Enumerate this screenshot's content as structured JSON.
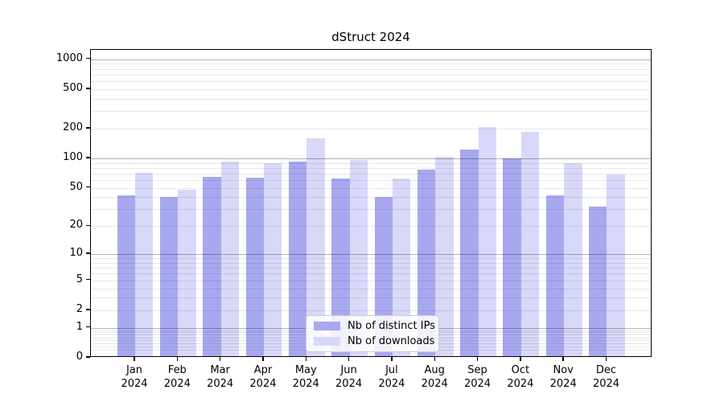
{
  "chart_data": {
    "type": "bar",
    "title": "dStruct 2024",
    "months": [
      "Jan",
      "Feb",
      "Mar",
      "Apr",
      "May",
      "Jun",
      "Jul",
      "Aug",
      "Sep",
      "Oct",
      "Nov",
      "Dec"
    ],
    "year": "2024",
    "categories": [
      "Jan 2024",
      "Feb 2024",
      "Mar 2024",
      "Apr 2024",
      "May 2024",
      "Jun 2024",
      "Jul 2024",
      "Aug 2024",
      "Sep 2024",
      "Oct 2024",
      "Nov 2024",
      "Dec 2024"
    ],
    "series": [
      {
        "name": "Nb of distinct IPs",
        "color": "#a8a8f0",
        "values": [
          42,
          40,
          65,
          63,
          92,
          62,
          40,
          77,
          124,
          100,
          42,
          32
        ]
      },
      {
        "name": "Nb of downloads",
        "color": "#d8d8f8",
        "values": [
          71,
          48,
          92,
          90,
          160,
          97,
          62,
          104,
          207,
          186,
          90,
          68
        ]
      }
    ],
    "yticks": [
      0,
      1,
      2,
      5,
      10,
      20,
      50,
      100,
      200,
      500,
      1000
    ],
    "yscale": "quasi-log: position proportional to log10(value+1)",
    "ylim": [
      0,
      1250
    ],
    "xlabel": "",
    "ylabel": "",
    "grid": "on (gridlines drawn above bars; darker lines at 1, 10, 100, 1000)",
    "legend_position": "lower center",
    "colors": {
      "major_gridline": "#b3b3b3",
      "minor_gridline": "#e8e8e8",
      "axis": "#000000",
      "background": "#ffffff"
    }
  }
}
